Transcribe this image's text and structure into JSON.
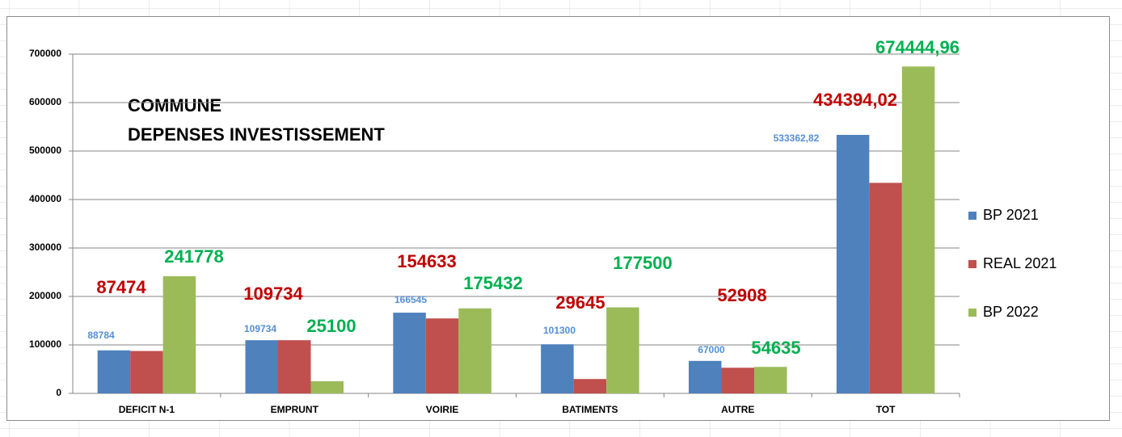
{
  "chart_data": {
    "type": "bar",
    "title": [
      "COMMUNE",
      "DEPENSES INVESTISSEMENT"
    ],
    "categories": [
      "DEFICIT N-1",
      "EMPRUNT",
      "VOIRIE",
      "BATIMENTS",
      "AUTRE",
      "TOT"
    ],
    "series": [
      {
        "name": "BP 2021",
        "color": "#4f81bd",
        "label_color": "#558ed5",
        "values": [
          88784,
          109734,
          166545,
          101300,
          67000,
          533362.82
        ],
        "value_labels": [
          "88784",
          "109734",
          "166545",
          "101300",
          "67000",
          "533362,82"
        ]
      },
      {
        "name": "REAL 2021",
        "color": "#c0504d",
        "label_color": "#c00000",
        "values": [
          87474,
          109734,
          154633,
          29645,
          52908,
          434394.02
        ],
        "value_labels": [
          "87474",
          "109734",
          "154633",
          "29645",
          "52908",
          "434394,02"
        ]
      },
      {
        "name": "BP 2022",
        "color": "#9bbb59",
        "label_color": "#00b050",
        "values": [
          241778,
          25100,
          175432,
          177500,
          54635,
          674444.96
        ],
        "value_labels": [
          "241778",
          "25100",
          "175432",
          "177500",
          "54635",
          "674444,96"
        ]
      }
    ],
    "ylim": [
      0,
      700000
    ],
    "yticks": [
      0,
      100000,
      200000,
      300000,
      400000,
      500000,
      600000,
      700000
    ],
    "grid": true,
    "legend": "right"
  }
}
